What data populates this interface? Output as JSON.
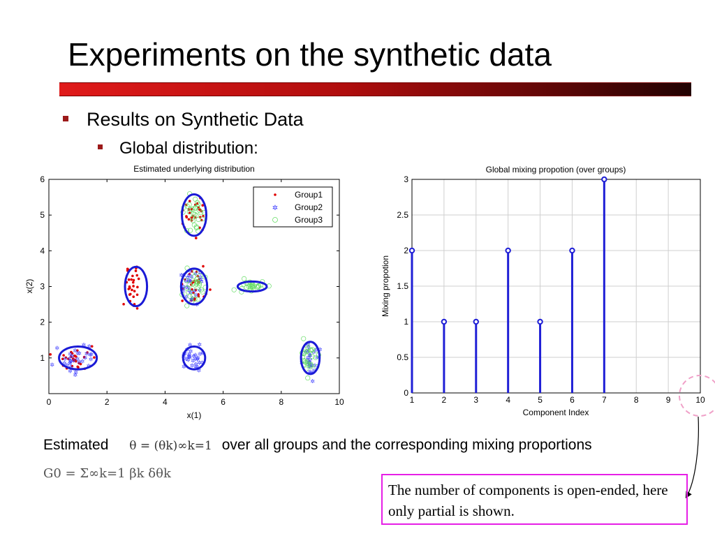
{
  "slide": {
    "title": "Experiments on the synthetic data",
    "bullet1": "Results on Synthetic Data",
    "bullet2": "Global distribution:",
    "caption_prefix": "Estimated",
    "caption_math": "θ = (θk)∞k=1",
    "caption_suffix": "over all groups and the corresponding mixing proportions",
    "g0_formula": "G0 = Σ∞k=1 βk δθk",
    "note": "The number of components is open-ended, here only partial is shown.",
    "colors": {
      "title_bar": "#c00000",
      "bullet": "#9c1a1a",
      "note_border": "#e61fe6",
      "annotation": "#f0a0c8"
    }
  },
  "chart_data": [
    {
      "type": "scatter",
      "title": "Estimated underlying distribution",
      "xlabel": "x(1)",
      "ylabel": "x(2)",
      "xlim": [
        0,
        10
      ],
      "ylim": [
        0,
        6
      ],
      "xticks": [
        "0",
        "2",
        "4",
        "6",
        "8",
        "10"
      ],
      "yticks": [
        "1",
        "2",
        "3",
        "4",
        "5",
        "6"
      ],
      "legend": {
        "position": "top-right",
        "entries": [
          "Group1",
          "Group2",
          "Group3"
        ]
      },
      "series": [
        {
          "name": "Group1",
          "color": "#e00000",
          "marker": "dot",
          "centers": [
            [
              1.0,
              1.0
            ],
            [
              3.0,
              3.0
            ],
            [
              5.0,
              5.0
            ],
            [
              5.0,
              3.0
            ]
          ]
        },
        {
          "name": "Group2",
          "color": "#3a3aff",
          "marker": "star",
          "centers": [
            [
              1.0,
              1.0
            ],
            [
              5.0,
              3.0
            ],
            [
              5.0,
              1.0
            ],
            [
              9.0,
              1.0
            ]
          ]
        },
        {
          "name": "Group3",
          "color": "#66dd66",
          "marker": "circle",
          "centers": [
            [
              5.0,
              5.0
            ],
            [
              5.0,
              3.0
            ],
            [
              7.0,
              3.0
            ],
            [
              9.0,
              1.0
            ]
          ]
        }
      ],
      "components": [
        {
          "cx": 1.0,
          "cy": 1.0,
          "rx": 0.65,
          "ry": 0.32
        },
        {
          "cx": 3.0,
          "cy": 3.0,
          "rx": 0.38,
          "ry": 0.55
        },
        {
          "cx": 5.0,
          "cy": 5.0,
          "rx": 0.42,
          "ry": 0.58
        },
        {
          "cx": 5.0,
          "cy": 3.0,
          "rx": 0.45,
          "ry": 0.5
        },
        {
          "cx": 7.0,
          "cy": 3.0,
          "rx": 0.5,
          "ry": 0.14
        },
        {
          "cx": 5.0,
          "cy": 1.0,
          "rx": 0.38,
          "ry": 0.32
        },
        {
          "cx": 9.0,
          "cy": 1.0,
          "rx": 0.32,
          "ry": 0.45
        }
      ]
    },
    {
      "type": "stem",
      "title": "Global mixing propotion (over groups)",
      "xlabel": "Component Index",
      "ylabel": "Mixing propotion",
      "xlim": [
        1,
        10
      ],
      "ylim": [
        0,
        3
      ],
      "xticks": [
        "1",
        "2",
        "3",
        "4",
        "5",
        "6",
        "7",
        "8",
        "9",
        "10"
      ],
      "yticks": [
        "0",
        "0.5",
        "1",
        "1.5",
        "2",
        "2.5",
        "3"
      ],
      "x": [
        1,
        2,
        3,
        4,
        5,
        6,
        7
      ],
      "values": [
        2,
        1,
        1,
        2,
        1,
        2,
        3
      ],
      "color": "#1f1fd6"
    }
  ]
}
